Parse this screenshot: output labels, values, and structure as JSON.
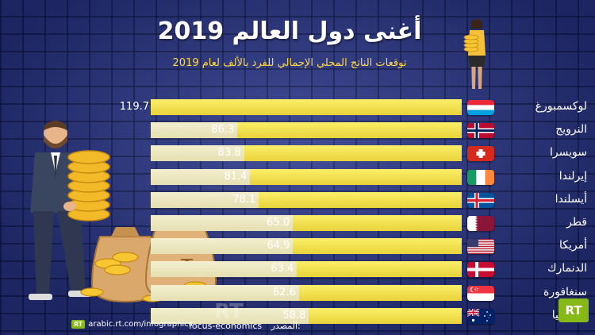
{
  "header": {
    "title": "أغنى دول العالم 2019",
    "subtitle": "توقعات الناتج المحلي الإجمالي للفرد بالألف لعام 2019"
  },
  "footer": {
    "source_label": "المصدر:",
    "source": "focus-economics",
    "site": "arabic.rt.com/infographics",
    "brand": "RT",
    "watermark": "RT"
  },
  "colors": {
    "bar_fill": "#f0df47",
    "bar_track": "#ede7c2",
    "background": "#2d3a8c",
    "subtitle": "#ffd84a",
    "brand_green": "#86b817"
  },
  "chart_data": {
    "type": "bar",
    "orientation": "horizontal",
    "title": "أغنى دول العالم 2019",
    "subtitle": "توقعات الناتج المحلي الإجمالي للفرد بالألف لعام 2019",
    "categories": [
      "لوكسمبورغ",
      "النرويج",
      "سويسرا",
      "إيرلندا",
      "أيسلندا",
      "قطر",
      "أمريكا",
      "الدنمارك",
      "سنغافورة",
      "أستراليا"
    ],
    "values": [
      119.7,
      86.3,
      83.8,
      81.4,
      78.1,
      65.0,
      64.9,
      63.4,
      62.6,
      58.8
    ],
    "value_labels": [
      "119.7",
      "86.3",
      "83.8",
      "81.4",
      "78.1",
      "65.0",
      "64.9",
      "63.4",
      "62.6",
      "58.8"
    ],
    "flags": [
      "luxembourg-flag",
      "norway-flag",
      "switzerland-flag",
      "ireland-flag",
      "iceland-flag",
      "qatar-flag",
      "usa-flag",
      "denmark-flag",
      "singapore-flag",
      "australia-flag"
    ],
    "xlim": [
      0,
      119.7
    ],
    "grid": false,
    "legend": "none"
  }
}
